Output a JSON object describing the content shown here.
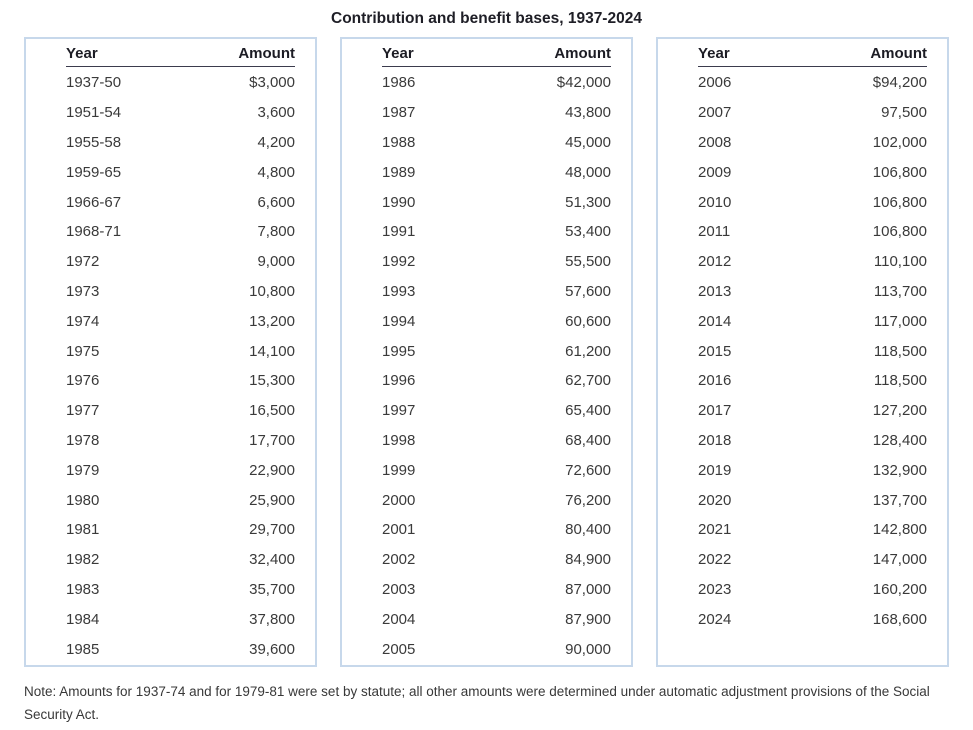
{
  "title": "Contribution and benefit bases, 1937-2024",
  "columns": {
    "year": "Year",
    "amount": "Amount"
  },
  "tables": [
    {
      "rows": [
        {
          "year": "1937-50",
          "amount": "$3,000"
        },
        {
          "year": "1951-54",
          "amount": "3,600"
        },
        {
          "year": "1955-58",
          "amount": "4,200"
        },
        {
          "year": "1959-65",
          "amount": "4,800"
        },
        {
          "year": "1966-67",
          "amount": "6,600"
        },
        {
          "year": "1968-71",
          "amount": "7,800"
        },
        {
          "year": "1972",
          "amount": "9,000"
        },
        {
          "year": "1973",
          "amount": "10,800"
        },
        {
          "year": "1974",
          "amount": "13,200"
        },
        {
          "year": "1975",
          "amount": "14,100"
        },
        {
          "year": "1976",
          "amount": "15,300"
        },
        {
          "year": "1977",
          "amount": "16,500"
        },
        {
          "year": "1978",
          "amount": "17,700"
        },
        {
          "year": "1979",
          "amount": "22,900"
        },
        {
          "year": "1980",
          "amount": "25,900"
        },
        {
          "year": "1981",
          "amount": "29,700"
        },
        {
          "year": "1982",
          "amount": "32,400"
        },
        {
          "year": "1983",
          "amount": "35,700"
        },
        {
          "year": "1984",
          "amount": "37,800"
        },
        {
          "year": "1985",
          "amount": "39,600"
        }
      ]
    },
    {
      "rows": [
        {
          "year": "1986",
          "amount": "$42,000"
        },
        {
          "year": "1987",
          "amount": "43,800"
        },
        {
          "year": "1988",
          "amount": "45,000"
        },
        {
          "year": "1989",
          "amount": "48,000"
        },
        {
          "year": "1990",
          "amount": "51,300"
        },
        {
          "year": "1991",
          "amount": "53,400"
        },
        {
          "year": "1992",
          "amount": "55,500"
        },
        {
          "year": "1993",
          "amount": "57,600"
        },
        {
          "year": "1994",
          "amount": "60,600"
        },
        {
          "year": "1995",
          "amount": "61,200"
        },
        {
          "year": "1996",
          "amount": "62,700"
        },
        {
          "year": "1997",
          "amount": "65,400"
        },
        {
          "year": "1998",
          "amount": "68,400"
        },
        {
          "year": "1999",
          "amount": "72,600"
        },
        {
          "year": "2000",
          "amount": "76,200"
        },
        {
          "year": "2001",
          "amount": "80,400"
        },
        {
          "year": "2002",
          "amount": "84,900"
        },
        {
          "year": "2003",
          "amount": "87,000"
        },
        {
          "year": "2004",
          "amount": "87,900"
        },
        {
          "year": "2005",
          "amount": "90,000"
        }
      ]
    },
    {
      "rows": [
        {
          "year": "2006",
          "amount": "$94,200"
        },
        {
          "year": "2007",
          "amount": "97,500"
        },
        {
          "year": "2008",
          "amount": "102,000"
        },
        {
          "year": "2009",
          "amount": "106,800"
        },
        {
          "year": "2010",
          "amount": "106,800"
        },
        {
          "year": "2011",
          "amount": "106,800"
        },
        {
          "year": "2012",
          "amount": "110,100"
        },
        {
          "year": "2013",
          "amount": "113,700"
        },
        {
          "year": "2014",
          "amount": "117,000"
        },
        {
          "year": "2015",
          "amount": "118,500"
        },
        {
          "year": "2016",
          "amount": "118,500"
        },
        {
          "year": "2017",
          "amount": "127,200"
        },
        {
          "year": "2018",
          "amount": "128,400"
        },
        {
          "year": "2019",
          "amount": "132,900"
        },
        {
          "year": "2020",
          "amount": "137,700"
        },
        {
          "year": "2021",
          "amount": "142,800"
        },
        {
          "year": "2022",
          "amount": "147,000"
        },
        {
          "year": "2023",
          "amount": "160,200"
        },
        {
          "year": "2024",
          "amount": "168,600"
        }
      ]
    }
  ],
  "note": "Note: Amounts for 1937-74 and for 1979-81 were set by statute; all other amounts were determined under automatic adjustment provisions of the Social Security Act.",
  "colors": {
    "panel_border": "#c7d8eb",
    "header_underline": "#3b3b4d",
    "title_text": "#1e1e26",
    "body_text": "#3a3a3a"
  }
}
